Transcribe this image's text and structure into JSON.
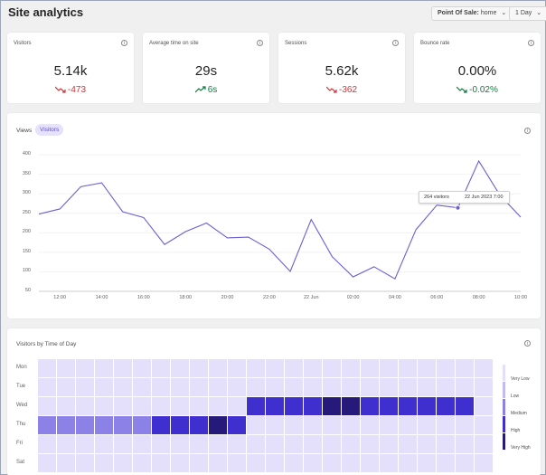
{
  "header": {
    "title": "Site analytics",
    "pos_label": "Point Of Sale:",
    "pos_value": "home",
    "range_value": "1 Day"
  },
  "kpis": [
    {
      "label": "Visitors",
      "value": "5.14k",
      "delta": "-473",
      "trend": "down",
      "color": "#d13438"
    },
    {
      "label": "Average time on site",
      "value": "29s",
      "delta": "6s",
      "trend": "up",
      "color": "#107c41"
    },
    {
      "label": "Sessions",
      "value": "5.62k",
      "delta": "-362",
      "trend": "down",
      "color": "#d13438"
    },
    {
      "label": "Bounce rate",
      "value": "0.00%",
      "delta": "-0.02%",
      "trend": "down",
      "color": "#107c41"
    }
  ],
  "line_card": {
    "tabs": [
      "Views",
      "Visitors"
    ],
    "active_tab": "Visitors",
    "tooltip": {
      "visitors": "264 visitors",
      "date": "22 Jun 2023 7:00"
    }
  },
  "chart_data": [
    {
      "type": "line",
      "series": [
        {
          "values": [
            248,
            261,
            318,
            328,
            254,
            239,
            170,
            203,
            225,
            187,
            189,
            158,
            101,
            234,
            139,
            87,
            113,
            82,
            208,
            271,
            264,
            384,
            297,
            240
          ]
        }
      ],
      "x_hours": [
        11,
        12,
        13,
        14,
        15,
        16,
        17,
        18,
        19,
        20,
        21,
        22,
        23,
        24,
        25,
        26,
        27,
        28,
        29,
        30,
        31,
        32,
        33,
        34
      ],
      "xticks": [
        "12:00",
        "14:00",
        "16:00",
        "18:00",
        "20:00",
        "22:00",
        "22 Jun",
        "02:00",
        "04:00",
        "06:00",
        "08:00",
        "10:00"
      ],
      "xtick_hours": [
        12,
        14,
        16,
        18,
        20,
        22,
        24,
        26,
        28,
        30,
        32,
        34
      ],
      "yticks": [
        50,
        100,
        150,
        200,
        250,
        300,
        350,
        400
      ],
      "ylim": [
        50,
        400
      ],
      "grid": true,
      "line_color": "#6b5fd3",
      "highlight_hour": 31
    },
    {
      "type": "heatmap",
      "title": "Visitors by Time of Day",
      "rows": [
        "Mon",
        "Tue",
        "Wed",
        "Thu",
        "Fri",
        "Sat"
      ],
      "columns": 24,
      "levels": [
        "Very Low",
        "Low",
        "Medium",
        "High",
        "Very High"
      ],
      "level_colors": [
        "#e4e0fb",
        "#c2bbf3",
        "#8c81e6",
        "#3f2fcf",
        "#251a7a"
      ],
      "values": [
        [
          0,
          0,
          0,
          0,
          0,
          0,
          0,
          0,
          0,
          0,
          0,
          0,
          0,
          0,
          0,
          0,
          0,
          0,
          0,
          0,
          0,
          0,
          0,
          0
        ],
        [
          0,
          0,
          0,
          0,
          0,
          0,
          0,
          0,
          0,
          0,
          0,
          0,
          0,
          0,
          0,
          0,
          0,
          0,
          0,
          0,
          0,
          0,
          0,
          0
        ],
        [
          0,
          0,
          0,
          0,
          0,
          0,
          0,
          0,
          0,
          0,
          0,
          3,
          3,
          3,
          3,
          4,
          4,
          3,
          3,
          3,
          3,
          3,
          3,
          0
        ],
        [
          2,
          2,
          2,
          2,
          2,
          2,
          3,
          3,
          3,
          4,
          3,
          0,
          0,
          0,
          0,
          0,
          0,
          0,
          0,
          0,
          0,
          0,
          0,
          0
        ],
        [
          0,
          0,
          0,
          0,
          0,
          0,
          0,
          0,
          0,
          0,
          0,
          0,
          0,
          0,
          0,
          0,
          0,
          0,
          0,
          0,
          0,
          0,
          0,
          0
        ],
        [
          0,
          0,
          0,
          0,
          0,
          0,
          0,
          0,
          0,
          0,
          0,
          0,
          0,
          0,
          0,
          0,
          0,
          0,
          0,
          0,
          0,
          0,
          0,
          0
        ]
      ]
    }
  ]
}
